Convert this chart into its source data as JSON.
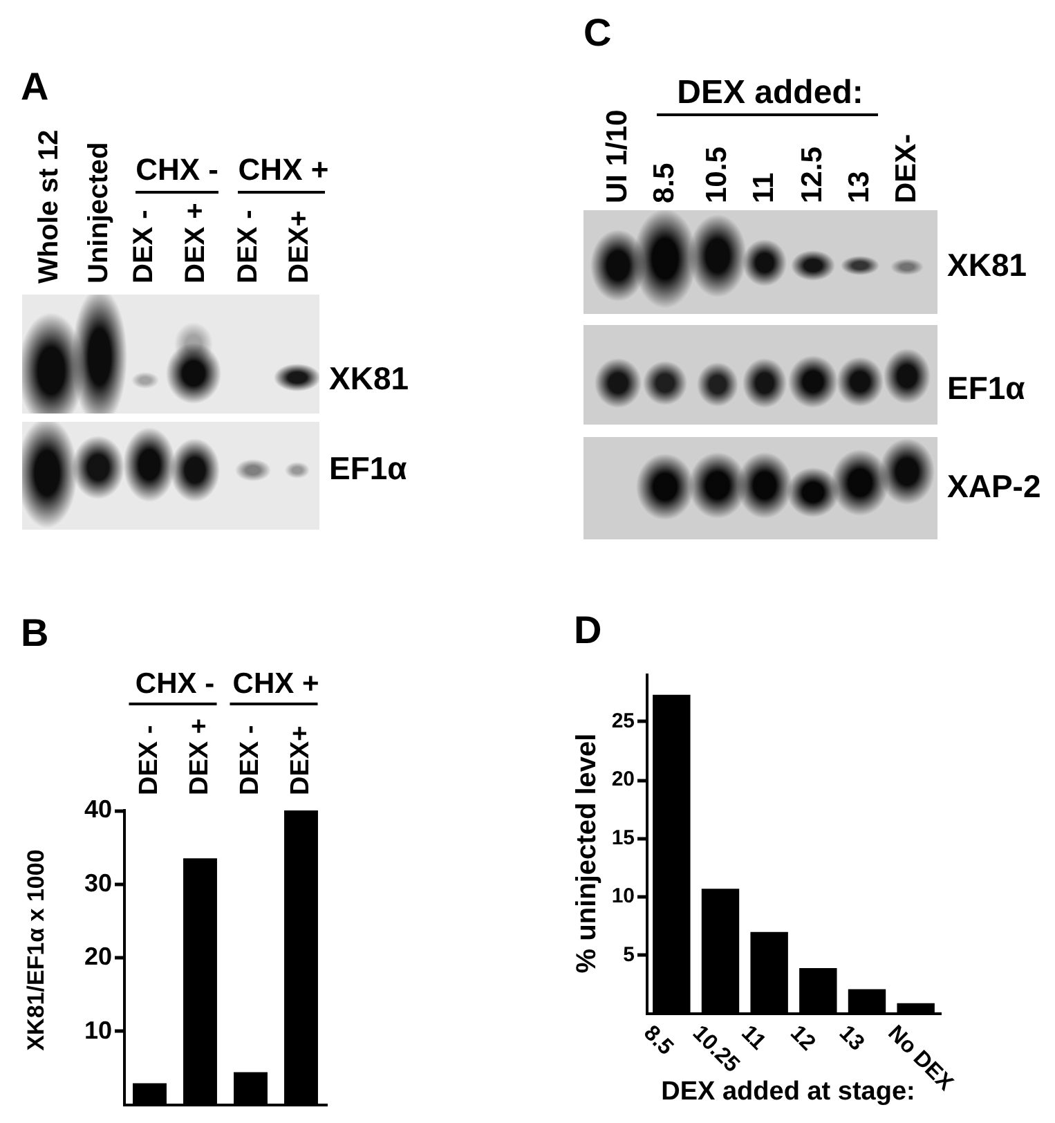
{
  "chart_data": [
    {
      "type": "other",
      "title": "A",
      "annotations": [
        "Whole st 12",
        "Uninjected",
        "CHX -",
        "CHX +",
        "DEX -",
        "DEX +",
        "DEX -",
        "DEX+",
        "XK81",
        "EF1α"
      ]
    },
    {
      "type": "other",
      "title": "C",
      "annotations": [
        "DEX added:",
        "UI 1/10",
        "8.5",
        "10.5",
        "11",
        "12.5",
        "13",
        "DEX-",
        "XK81",
        "EF1α",
        "XAP-2"
      ]
    },
    {
      "type": "bar",
      "title": "B",
      "ylabel": "XK81/EF1α x 1000",
      "categories": [
        "DEX -",
        "DEX +",
        "DEX -",
        "DEX+"
      ],
      "values": [
        3,
        33.5,
        4.5,
        40
      ],
      "color": "#000000",
      "ylim": [
        0,
        40
      ],
      "yticks": [
        10,
        20,
        30,
        40
      ],
      "annotations": [
        "CHX -",
        "CHX +"
      ]
    },
    {
      "type": "bar",
      "title": "D",
      "ylabel": "% uninjected level",
      "xlabel": "DEX added at stage:",
      "categories": [
        "8.5",
        "10.25",
        "11",
        "12",
        "13",
        "No DEX"
      ],
      "values": [
        27.3,
        10.7,
        7,
        3.9,
        2.1,
        0.9
      ],
      "color": "#000000",
      "ylim": [
        0,
        29
      ],
      "yticks": [
        5,
        10,
        15,
        20,
        25
      ]
    }
  ]
}
